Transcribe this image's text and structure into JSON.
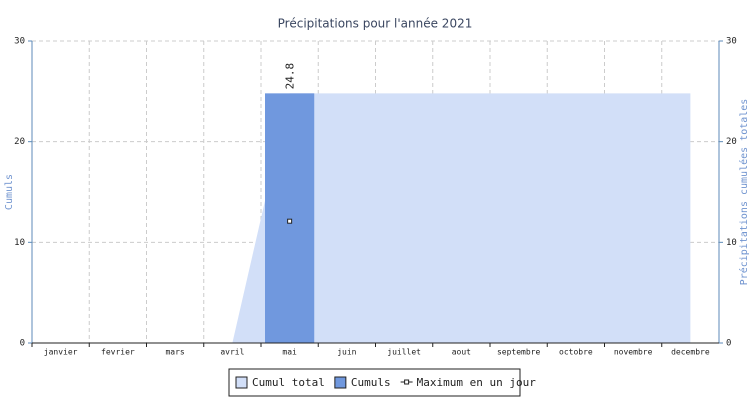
{
  "chart_data": {
    "type": "bar",
    "title": "Précipitations pour l'année 2021",
    "categories": [
      "janvier",
      "fevrier",
      "mars",
      "avril",
      "mai",
      "juin",
      "juillet",
      "aout",
      "septembre",
      "octobre",
      "novembre",
      "decembre"
    ],
    "series": [
      {
        "name": "Cumul total",
        "type": "area",
        "axis": "y2",
        "color": "#d2dff8",
        "values": [
          0,
          0,
          0,
          0,
          24.8,
          24.8,
          24.8,
          24.8,
          24.8,
          24.8,
          24.8,
          24.8
        ]
      },
      {
        "name": "Cumuls",
        "type": "bar",
        "color": "#7098de",
        "values": [
          0,
          0,
          0,
          0,
          24.8,
          0,
          0,
          0,
          0,
          0,
          0,
          0
        ]
      },
      {
        "name": "Maximum en un jour",
        "type": "point",
        "color": "#222222",
        "values": [
          null,
          null,
          null,
          null,
          12.1,
          null,
          null,
          null,
          null,
          null,
          null,
          null
        ]
      }
    ],
    "ylabel": "Cumuls",
    "y2label": "Précipitations cumulées totales",
    "ylim": [
      0,
      30
    ],
    "yticks": [
      0,
      10,
      20,
      30
    ],
    "y2lim": [
      0,
      30
    ],
    "y2ticks": [
      0,
      10,
      20,
      30
    ],
    "grid": true,
    "legend": "bottom"
  }
}
